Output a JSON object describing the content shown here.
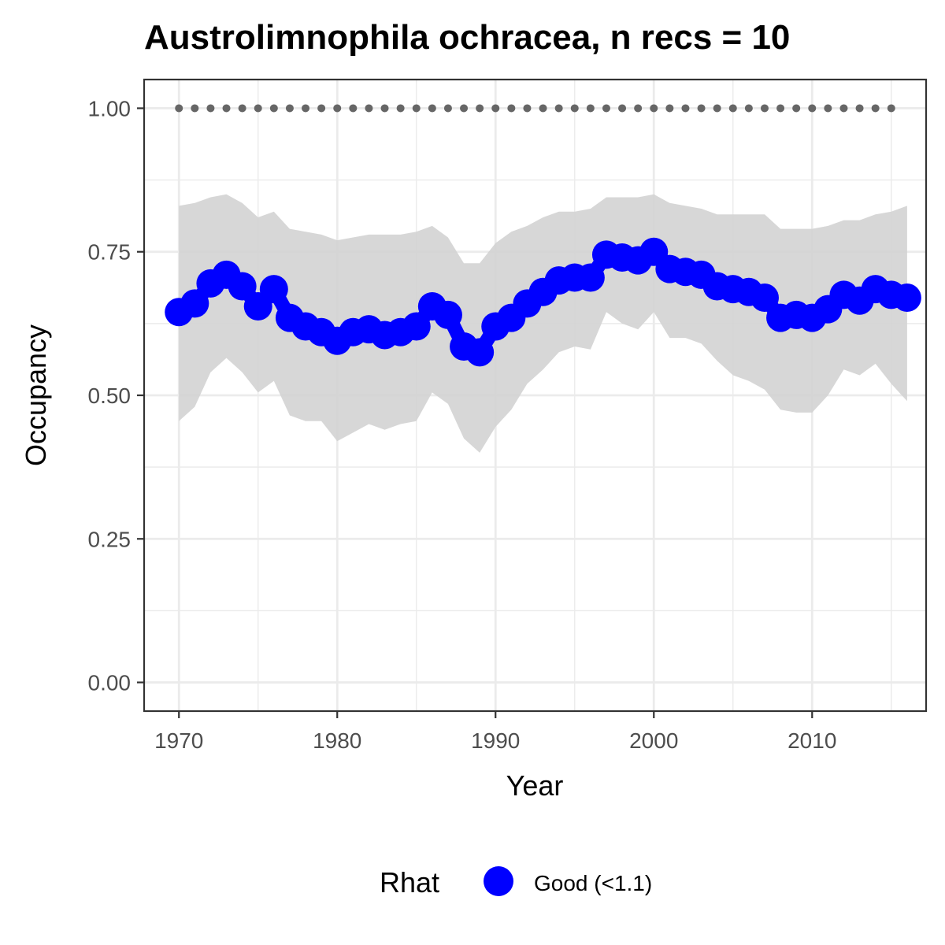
{
  "chart_data": {
    "type": "line",
    "title": "Austrolimnophila ochracea, n recs = 10",
    "xlabel": "Year",
    "ylabel": "Occupancy",
    "xlim": [
      1967.8,
      2017.2
    ],
    "ylim": [
      -0.05,
      1.05
    ],
    "x_ticks": [
      1970,
      1980,
      1990,
      2000,
      2010
    ],
    "x_tick_labels": [
      "1970",
      "1980",
      "1990",
      "2000",
      "2010"
    ],
    "y_ticks": [
      0,
      0.25,
      0.5,
      0.75,
      1.0
    ],
    "y_tick_labels": [
      "0.00",
      "0.25",
      "0.50",
      "0.75",
      "1.00"
    ],
    "grid": true,
    "series": [
      {
        "name": "Good (<1.1)",
        "x": [
          1970,
          1971,
          1972,
          1973,
          1974,
          1975,
          1976,
          1977,
          1978,
          1979,
          1980,
          1981,
          1982,
          1983,
          1984,
          1985,
          1986,
          1987,
          1988,
          1989,
          1990,
          1991,
          1992,
          1993,
          1994,
          1995,
          1996,
          1997,
          1998,
          1999,
          2000,
          2001,
          2002,
          2003,
          2004,
          2005,
          2006,
          2007,
          2008,
          2009,
          2010,
          2011,
          2012,
          2013,
          2014,
          2015,
          2016
        ],
        "values": [
          0.645,
          0.66,
          0.695,
          0.71,
          0.69,
          0.655,
          0.685,
          0.635,
          0.62,
          0.61,
          0.595,
          0.61,
          0.615,
          0.605,
          0.61,
          0.62,
          0.655,
          0.64,
          0.585,
          0.575,
          0.62,
          0.635,
          0.66,
          0.68,
          0.7,
          0.705,
          0.705,
          0.745,
          0.74,
          0.735,
          0.75,
          0.72,
          0.715,
          0.71,
          0.69,
          0.685,
          0.68,
          0.67,
          0.635,
          0.64,
          0.635,
          0.65,
          0.675,
          0.665,
          0.685,
          0.675,
          0.67
        ],
        "lower": [
          0.455,
          0.48,
          0.54,
          0.565,
          0.54,
          0.505,
          0.525,
          0.465,
          0.455,
          0.455,
          0.42,
          0.435,
          0.45,
          0.44,
          0.45,
          0.455,
          0.505,
          0.485,
          0.425,
          0.4,
          0.445,
          0.475,
          0.52,
          0.545,
          0.575,
          0.585,
          0.58,
          0.645,
          0.625,
          0.615,
          0.645,
          0.6,
          0.6,
          0.59,
          0.56,
          0.535,
          0.525,
          0.51,
          0.475,
          0.47,
          0.47,
          0.5,
          0.545,
          0.535,
          0.555,
          0.52,
          0.49
        ],
        "upper": [
          0.83,
          0.835,
          0.845,
          0.85,
          0.835,
          0.81,
          0.82,
          0.79,
          0.785,
          0.78,
          0.77,
          0.775,
          0.78,
          0.78,
          0.78,
          0.785,
          0.795,
          0.775,
          0.73,
          0.73,
          0.765,
          0.785,
          0.795,
          0.81,
          0.82,
          0.82,
          0.825,
          0.845,
          0.845,
          0.845,
          0.85,
          0.835,
          0.83,
          0.825,
          0.815,
          0.815,
          0.815,
          0.815,
          0.79,
          0.79,
          0.79,
          0.795,
          0.805,
          0.805,
          0.815,
          0.82,
          0.83
        ],
        "color": "#0000ff"
      }
    ],
    "reference_line": {
      "y": 1.0,
      "x_start": 1970,
      "x_end": 2015,
      "color": "#666666"
    },
    "ribbon_color": "#d3d3d3",
    "legend": {
      "title": "Rhat",
      "entries": [
        "Good (<1.1)"
      ],
      "placement": "bottom"
    }
  }
}
